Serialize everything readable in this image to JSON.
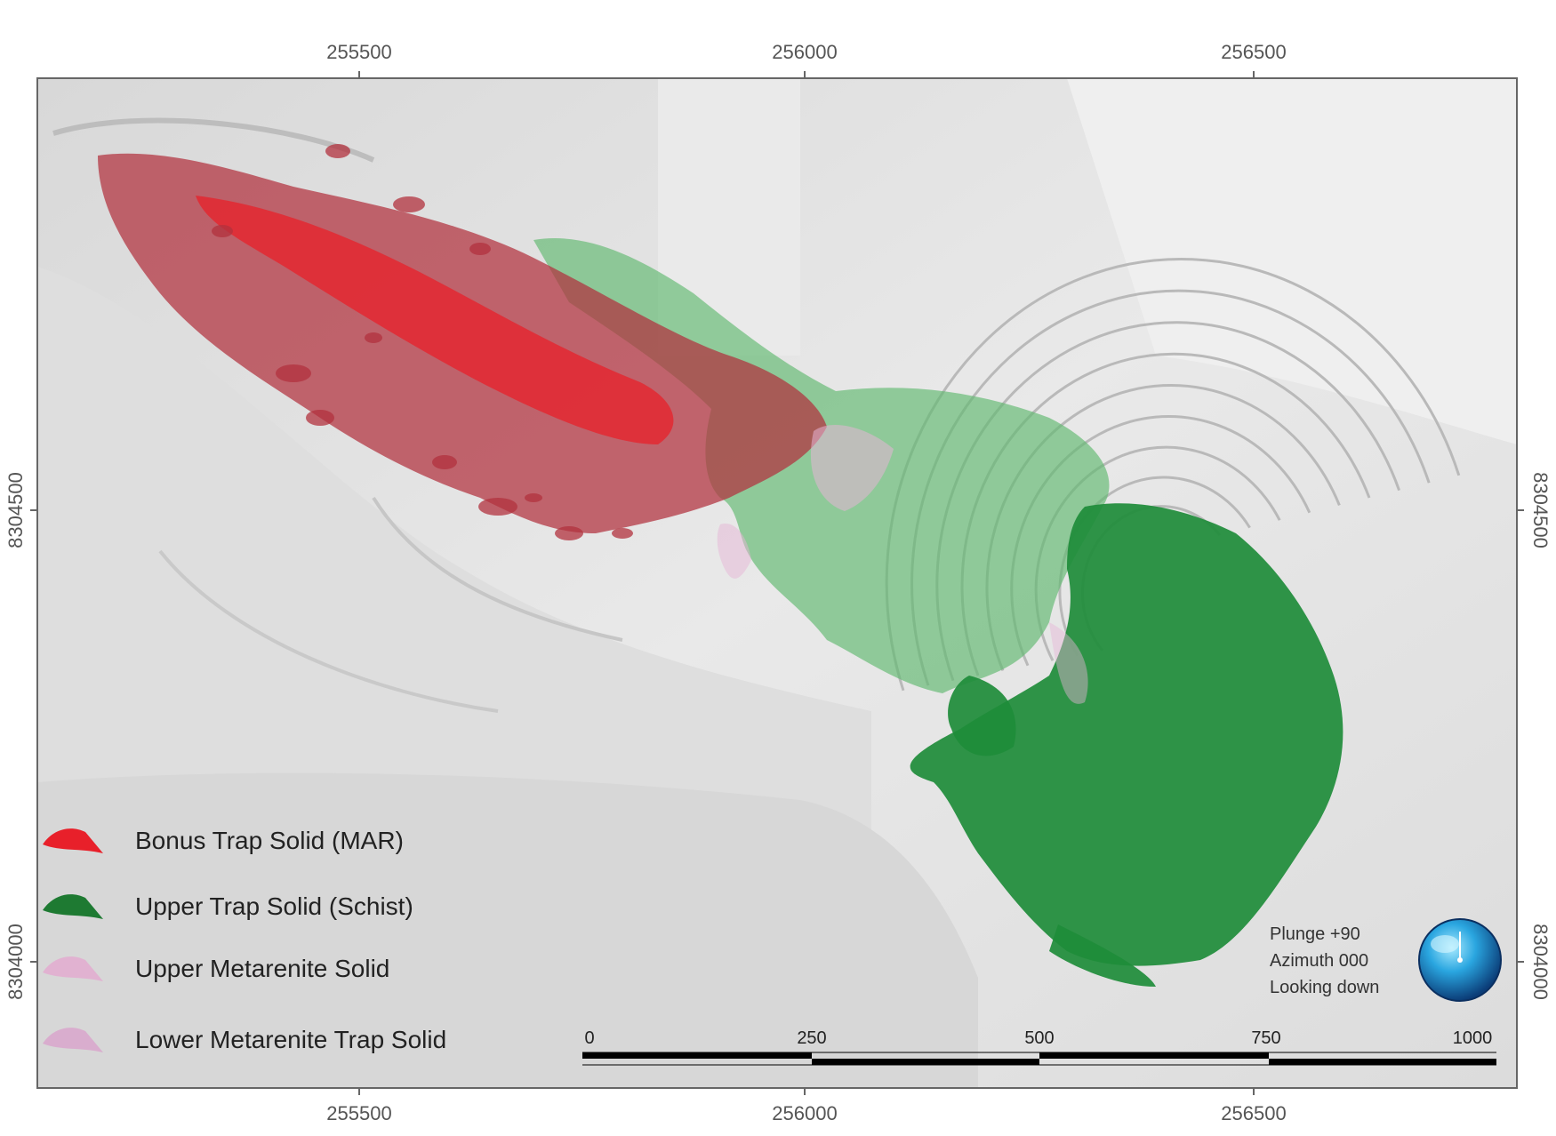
{
  "map": {
    "x_axis": {
      "ticks": [
        255500,
        256000,
        256500
      ],
      "labels": [
        "255500",
        "256000",
        "256500"
      ]
    },
    "y_axis": {
      "ticks": [
        8304500,
        8304000
      ],
      "labels": [
        "8304500",
        "8304000"
      ]
    },
    "legend": [
      {
        "label": "Bonus Trap Solid (MAR)",
        "color": "#e8202a",
        "icon": "red-solid-icon"
      },
      {
        "label": "Upper Trap Solid (Schist)",
        "color": "#1e7a32",
        "icon": "green-solid-icon"
      },
      {
        "label": "Upper Metarenite Solid",
        "color": "#e3a9cf",
        "icon": "pink-solid-icon"
      },
      {
        "label": "Lower Metarenite Trap Solid",
        "color": "#d9a2cc",
        "icon": "pink-solid-icon"
      }
    ],
    "view": {
      "plunge": "Plunge +90",
      "azimuth": "Azimuth 000",
      "looking": "Looking down",
      "icon": "orientation-sphere-icon"
    },
    "scale_bar": {
      "labels": [
        "0",
        "250",
        "500",
        "750",
        "1000"
      ]
    },
    "colors": {
      "red_solid": "#b2313d",
      "red_bright": "#e8202a",
      "green_light": "#5fb86f",
      "green_dark": "#1e8c3a",
      "pink": "#e6b5d6",
      "background": "#e4e4e4"
    }
  }
}
